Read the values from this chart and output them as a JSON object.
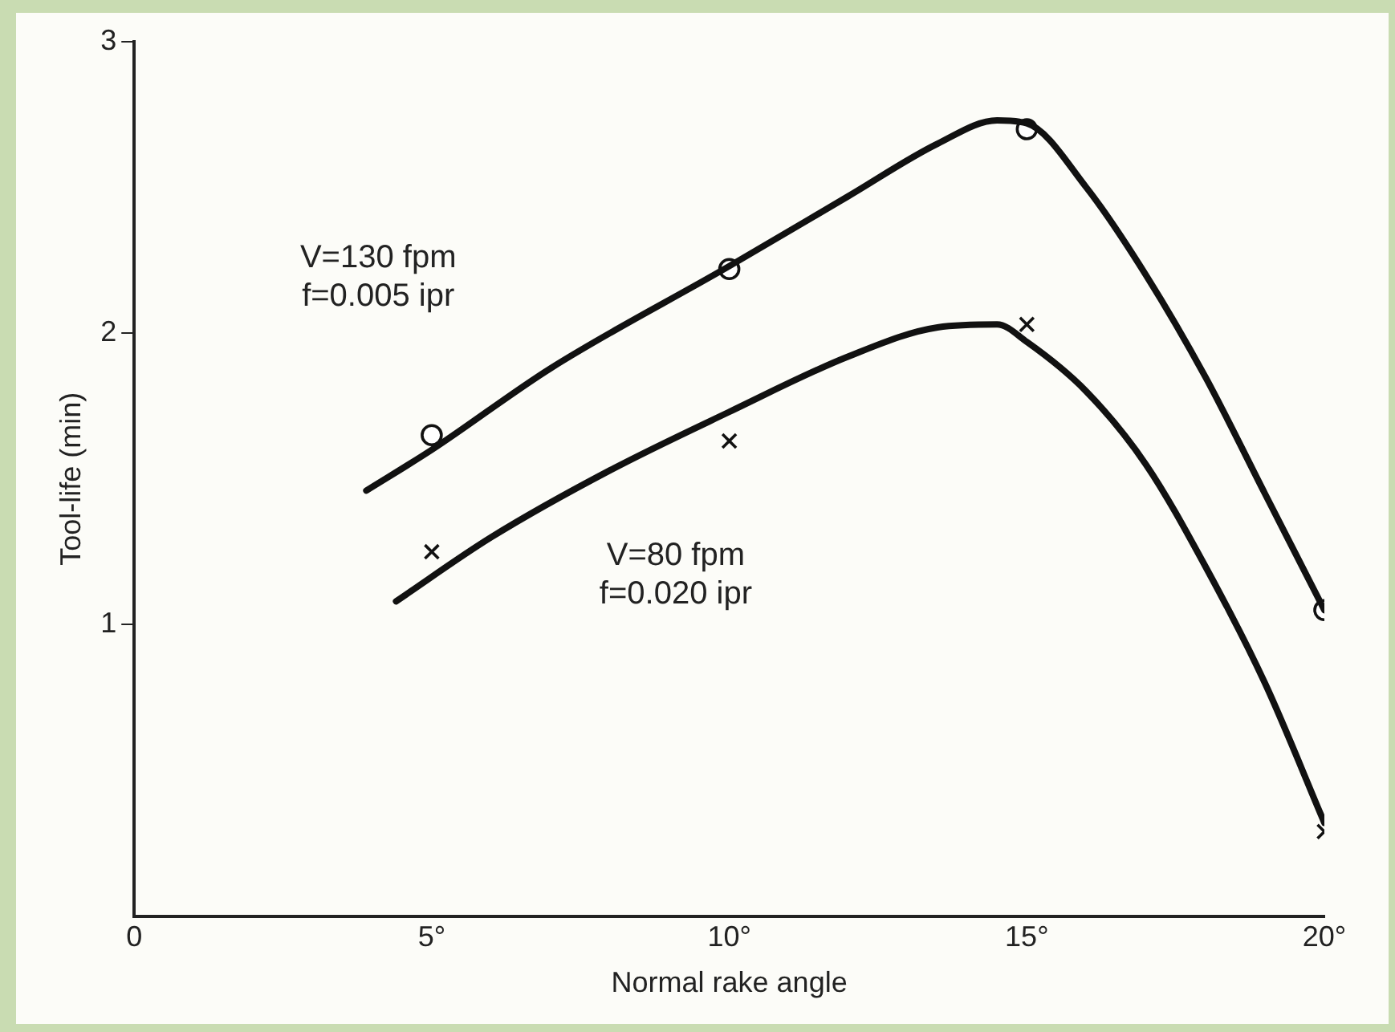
{
  "chart_data": {
    "type": "line",
    "xlabel": "Normal rake angle",
    "ylabel": "Tool-life (min)",
    "xlim": [
      0,
      20
    ],
    "ylim": [
      0,
      3
    ],
    "xticks": [
      0,
      {
        "value": 5,
        "label": "5°"
      },
      {
        "value": 10,
        "label": "10°"
      },
      {
        "value": 15,
        "label": "15°"
      },
      {
        "value": 20,
        "label": "20°"
      }
    ],
    "yticks": [
      1,
      2,
      3
    ],
    "grid": false,
    "legend": false,
    "line_style": "solid",
    "series": [
      {
        "color": "#111111",
        "marker": "none",
        "x": [
          3.9,
          5,
          7,
          10,
          12,
          13.5,
          14.5,
          15,
          16,
          17,
          18,
          19,
          20
        ],
        "values": [
          1.46,
          1.6,
          1.88,
          2.23,
          2.47,
          2.65,
          2.73,
          2.72,
          2.5,
          2.2,
          1.85,
          1.45,
          1.05
        ]
      },
      {
        "color": "#111111",
        "marker": "none",
        "x": [
          4.4,
          6,
          8,
          10,
          12,
          13.5,
          14.5,
          15,
          16,
          17,
          18,
          19,
          20
        ],
        "values": [
          1.08,
          1.3,
          1.53,
          1.73,
          1.92,
          2.02,
          2.03,
          1.97,
          1.8,
          1.55,
          1.2,
          0.8,
          0.32
        ]
      },
      {
        "type": "scatter",
        "color": "#111111",
        "marker": "circle",
        "x": [
          5,
          10,
          15,
          20
        ],
        "values": [
          1.65,
          2.22,
          2.7,
          1.05
        ]
      },
      {
        "type": "scatter",
        "color": "#111111",
        "marker": "cross",
        "x": [
          5,
          10,
          15,
          20
        ],
        "values": [
          1.25,
          1.63,
          2.03,
          0.29
        ]
      }
    ],
    "annotations": [
      "V=130 fpm\nf=0.005 ipr",
      "V=80 fpm\nf=0.020 ipr"
    ]
  }
}
